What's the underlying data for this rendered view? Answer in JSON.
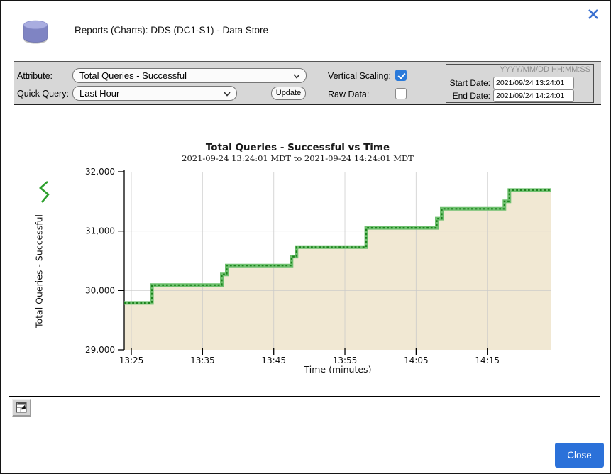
{
  "dialog": {
    "title": "Reports (Charts): DDS (DC1-S1) - Data Store"
  },
  "toolbar": {
    "attribute_label": "Attribute:",
    "attribute_value": "Total Queries - Successful",
    "quick_query_label": "Quick Query:",
    "quick_query_value": "Last Hour",
    "update_label": "Update",
    "vertical_scaling_label": "Vertical Scaling:",
    "vertical_scaling_checked": true,
    "raw_data_label": "Raw Data:",
    "raw_data_checked": false,
    "date_format_hint": "YYYY/MM/DD HH:MM:SS",
    "start_date_label": "Start Date:",
    "start_date_value": "2021/09/24 13:24:01",
    "end_date_label": "End Date:",
    "end_date_value": "2021/09/24 14:24:01"
  },
  "chart_data": {
    "type": "area",
    "subtype": "step-after",
    "title": "Total Queries - Successful vs Time",
    "subtitle": "2021-09-24 13:24:01 MDT to 2021-09-24 14:24:01 MDT",
    "xlabel": "Time (minutes)",
    "ylabel": "Total Queries - Successful",
    "x_start_time": "13:24",
    "x_end_time": "14:24",
    "x_range_minutes": [
      0,
      60
    ],
    "ylim": [
      29000,
      32000
    ],
    "x_ticks": [
      {
        "label": "13:25",
        "minute": 1
      },
      {
        "label": "13:35",
        "minute": 11
      },
      {
        "label": "13:45",
        "minute": 21
      },
      {
        "label": "13:55",
        "minute": 31
      },
      {
        "label": "14:05",
        "minute": 41
      },
      {
        "label": "14:15",
        "minute": 51
      }
    ],
    "y_ticks": [
      {
        "label": "29,000",
        "value": 29000,
        "grid": false
      },
      {
        "label": "30,000",
        "value": 30000,
        "grid": true
      },
      {
        "label": "31,000",
        "value": 31000,
        "grid": true
      },
      {
        "label": "32,000",
        "value": 32000,
        "grid": false
      }
    ],
    "grid": true,
    "legend_position": "left",
    "series": [
      {
        "name": "Total Queries - Successful",
        "points_minutes_value": [
          [
            0,
            29790
          ],
          [
            3.9,
            30090
          ],
          [
            13.7,
            30270
          ],
          [
            14.4,
            30420
          ],
          [
            23.5,
            30570
          ],
          [
            24.2,
            30730
          ],
          [
            34,
            31055
          ],
          [
            43.9,
            31210
          ],
          [
            44.6,
            31375
          ],
          [
            53.4,
            31500
          ],
          [
            54.1,
            31690
          ],
          [
            60,
            31690
          ]
        ]
      }
    ],
    "colors": {
      "line_outer": "#6fc06f",
      "line_dash": "#1d831d",
      "fill": "#f1e8d3",
      "grid": "#c9c9c9",
      "axis": "#000000",
      "text": "#111111"
    }
  },
  "footer": {
    "close_label": "Close"
  },
  "accent_colors": {
    "close_button": "#2b71d9",
    "checkbox_checked": "#2a7ada",
    "close_x_icon": "#3a70d0",
    "db_icon_body": "#7f84c3"
  }
}
